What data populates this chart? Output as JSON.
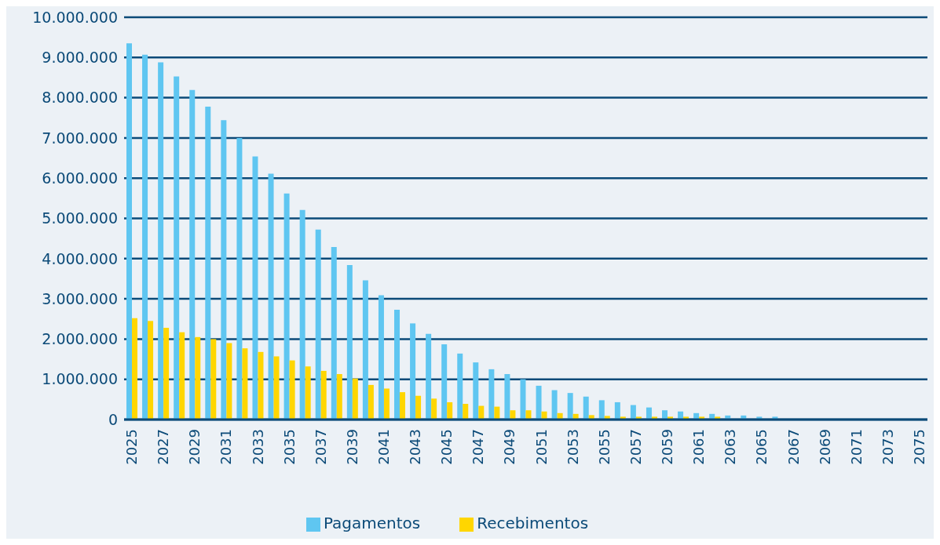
{
  "chart_data": {
    "type": "bar",
    "categories": [
      "2025",
      null,
      "2027",
      null,
      "2029",
      null,
      "2031",
      null,
      "2033",
      null,
      "2035",
      null,
      "2037",
      null,
      "2039",
      null,
      "2041",
      null,
      "2043",
      null,
      "2045",
      null,
      "2047",
      null,
      "2049",
      null,
      "2051",
      null,
      "2053",
      null,
      "2055",
      null,
      "2057",
      null,
      "2059",
      null,
      "2061",
      null,
      "2063",
      null,
      "2065",
      null,
      "2067",
      null,
      "2069",
      null,
      "2071",
      null,
      "2073",
      null,
      "2075"
    ],
    "series": [
      {
        "name": "Pagamentos",
        "color": "#5fc6f1",
        "values": [
          9350000,
          9070000,
          8880000,
          8530000,
          8190000,
          7780000,
          7440000,
          7000000,
          6540000,
          6110000,
          5620000,
          5210000,
          4720000,
          4290000,
          3840000,
          3460000,
          3090000,
          2730000,
          2390000,
          2130000,
          1870000,
          1640000,
          1420000,
          1250000,
          1130000,
          1000000,
          840000,
          730000,
          660000,
          570000,
          480000,
          430000,
          360000,
          300000,
          230000,
          200000,
          160000,
          140000,
          100000,
          100000,
          70000,
          70000,
          0,
          0,
          0,
          0,
          0,
          0,
          0,
          0,
          0
        ]
      },
      {
        "name": "Recebimentos",
        "color": "#ffd600",
        "values": [
          2520000,
          2450000,
          2280000,
          2170000,
          2050000,
          2000000,
          1900000,
          1770000,
          1680000,
          1570000,
          1470000,
          1320000,
          1210000,
          1130000,
          1020000,
          860000,
          770000,
          680000,
          590000,
          520000,
          430000,
          390000,
          340000,
          320000,
          230000,
          230000,
          200000,
          160000,
          140000,
          110000,
          90000,
          70000,
          70000,
          70000,
          70000,
          70000,
          70000,
          70000,
          0,
          0,
          0,
          0,
          0,
          0,
          0,
          0,
          0,
          0,
          0,
          0,
          0
        ]
      }
    ],
    "ylim": [
      0,
      10000000
    ],
    "yticks": [
      0,
      {
        "value": 1000000,
        "label": "1.000.000"
      },
      {
        "value": 2000000,
        "label": "2.000.000"
      },
      {
        "value": 3000000,
        "label": "3.000.000"
      },
      {
        "value": 4000000,
        "label": "4.000.000"
      },
      {
        "value": 5000000,
        "label": "5.000.000"
      },
      {
        "value": 6000000,
        "label": "6.000.000"
      },
      {
        "value": 7000000,
        "label": "7.000.000"
      },
      {
        "value": 8000000,
        "label": "8.000.000"
      },
      {
        "value": 9000000,
        "label": "9.000.000"
      },
      {
        "value": 10000000,
        "label": "10.000.000"
      }
    ],
    "grid": "y",
    "legend": "bottom"
  }
}
